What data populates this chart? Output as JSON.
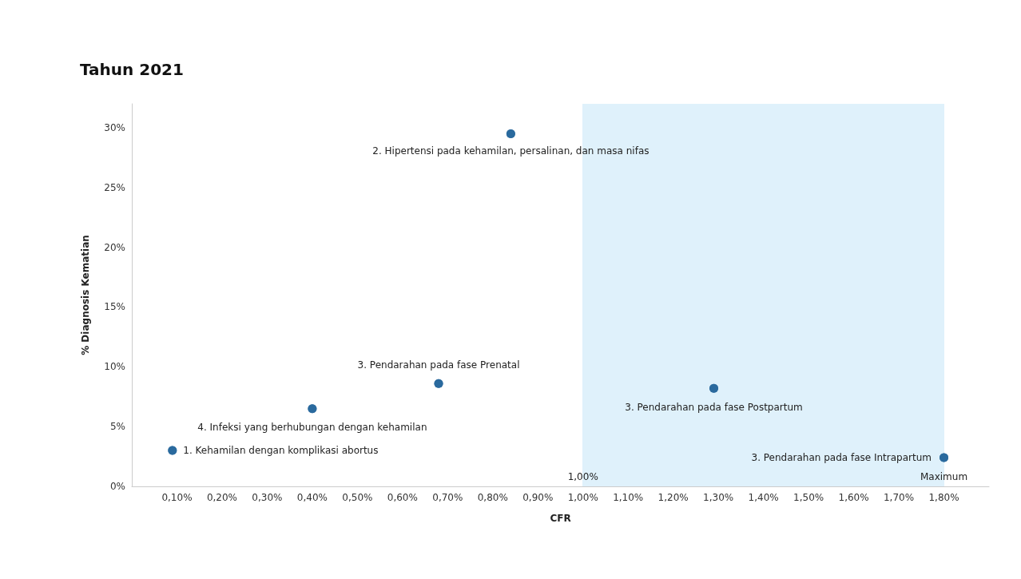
{
  "chart_data": {
    "type": "scatter",
    "title": "Tahun 2021",
    "xlabel": "CFR",
    "ylabel": "% Diagnosis Kematian",
    "x": [
      0.09,
      0.84,
      0.68,
      0.4,
      1.29,
      1.8
    ],
    "values": [
      3.0,
      29.5,
      8.6,
      6.5,
      8.2,
      2.4
    ],
    "color": "#2b6a9e",
    "marker": "circle",
    "grid": false,
    "xlim": [
      0,
      1.9
    ],
    "xticks": [
      {
        "value": 0.1,
        "label": "0,10%"
      },
      {
        "value": 0.2,
        "label": "0,20%"
      },
      {
        "value": 0.3,
        "label": "0,30%"
      },
      {
        "value": 0.4,
        "label": "0,40%"
      },
      {
        "value": 0.5,
        "label": "0,50%"
      },
      {
        "value": 0.6,
        "label": "0,60%"
      },
      {
        "value": 0.7,
        "label": "0,70%"
      },
      {
        "value": 0.8,
        "label": "0,80%"
      },
      {
        "value": 0.9,
        "label": "0,90%"
      },
      {
        "value": 1.0,
        "label": "1,00%"
      },
      {
        "value": 1.1,
        "label": "1,10%"
      },
      {
        "value": 1.2,
        "label": "1,20%"
      },
      {
        "value": 1.3,
        "label": "1,30%"
      },
      {
        "value": 1.4,
        "label": "1,40%"
      },
      {
        "value": 1.5,
        "label": "1,50%"
      },
      {
        "value": 1.6,
        "label": "1,60%"
      },
      {
        "value": 1.7,
        "label": "1,70%"
      },
      {
        "value": 1.8,
        "label": "1,80%"
      }
    ],
    "ylim": [
      0,
      32
    ],
    "yticks": [
      {
        "value": 0,
        "label": "0%"
      },
      {
        "value": 5,
        "label": "5%"
      },
      {
        "value": 10,
        "label": "10%"
      },
      {
        "value": 15,
        "label": "15%"
      },
      {
        "value": 20,
        "label": "20%"
      },
      {
        "value": 25,
        "label": "25%"
      },
      {
        "value": 30,
        "label": "30%"
      }
    ],
    "bands": [
      {
        "axis": "x",
        "from": 1.0,
        "to": 1.8,
        "color": "#dff1fb"
      }
    ],
    "ref_lines": [
      {
        "axis": "x",
        "value": 1.0,
        "label": "1,00%",
        "color": "#dff1fb"
      },
      {
        "axis": "x",
        "value": 1.8,
        "label": "Maximum",
        "color": "#dff1fb"
      }
    ],
    "annotations": [
      {
        "text": "1. Kehamilan dengan komplikasi abortus",
        "x": 0.09,
        "y": 3.0
      },
      {
        "text": "2. Hipertensi pada kehamilan, persalinan, dan masa nifas",
        "x": 0.84,
        "y": 29.5
      },
      {
        "text": "3. Pendarahan pada fase Prenatal",
        "x": 0.68,
        "y": 8.6
      },
      {
        "text": "4. Infeksi yang berhubungan dengan kehamilan",
        "x": 0.4,
        "y": 6.5
      },
      {
        "text": "3. Pendarahan pada fase Postpartum",
        "x": 1.29,
        "y": 8.2
      },
      {
        "text": "3. Pendarahan pada fase Intrapartum",
        "x": 1.8,
        "y": 2.4
      }
    ]
  }
}
